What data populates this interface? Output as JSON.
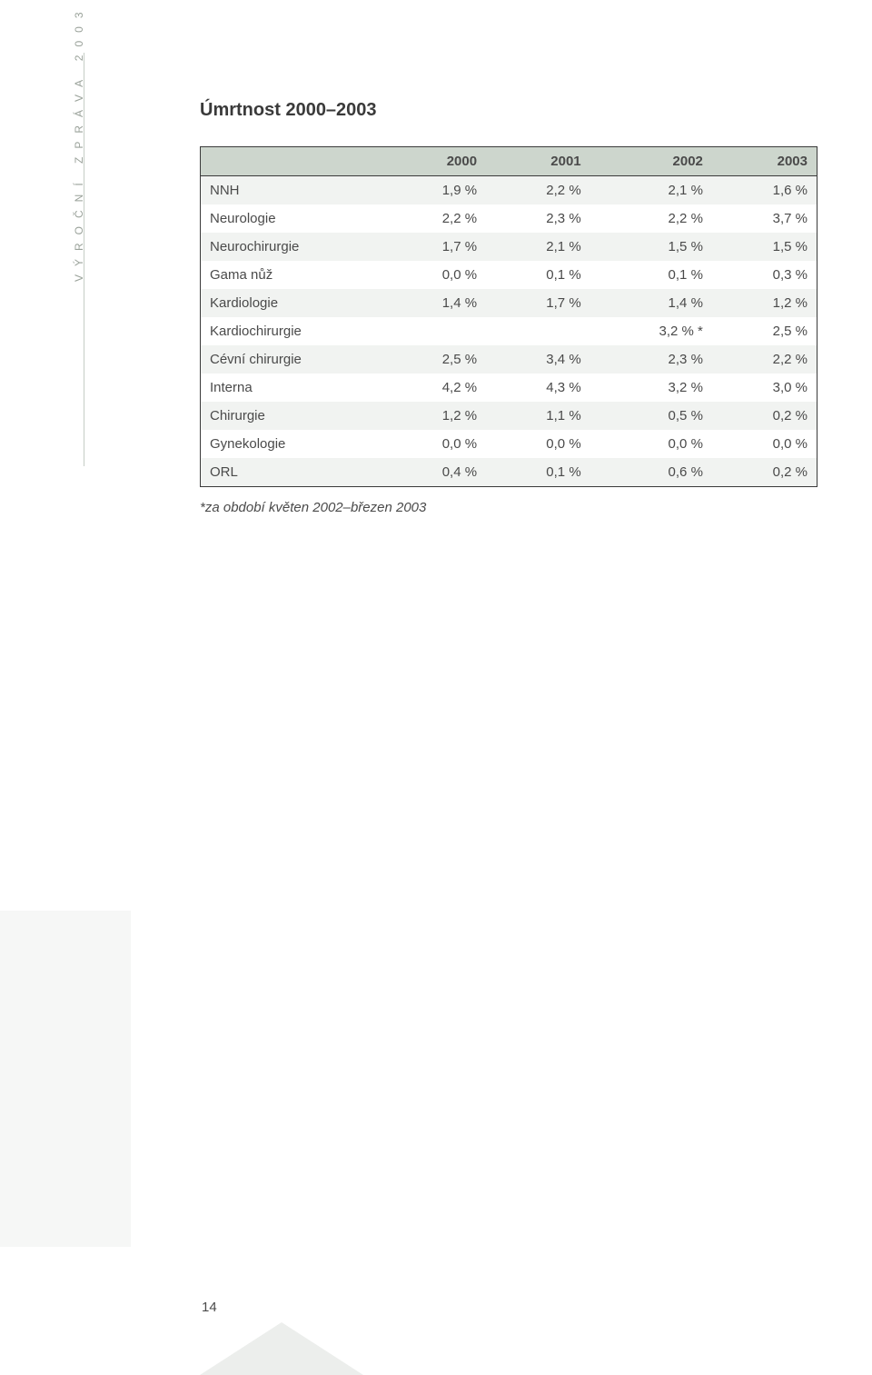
{
  "sidebar": {
    "text": "VÝROČNÍ ZPRÁVA 2003"
  },
  "title": "Úmrtnost 2000–2003",
  "table": {
    "columns": [
      "",
      "2000",
      "2001",
      "2002",
      "2003"
    ],
    "rows": [
      [
        "NNH",
        "1,9 %",
        "2,2 %",
        "2,1 %",
        "1,6 %"
      ],
      [
        "Neurologie",
        "2,2 %",
        "2,3 %",
        "2,2 %",
        "3,7 %"
      ],
      [
        "Neurochirurgie",
        "1,7 %",
        "2,1 %",
        "1,5 %",
        "1,5 %"
      ],
      [
        "Gama nůž",
        "0,0 %",
        "0,1 %",
        "0,1 %",
        "0,3 %"
      ],
      [
        "Kardiologie",
        "1,4 %",
        "1,7 %",
        "1,4 %",
        "1,2 %"
      ],
      [
        "Kardiochirurgie",
        "",
        "",
        "3,2 % *",
        "2,5 %"
      ],
      [
        "Cévní chirurgie",
        "2,5 %",
        "3,4 %",
        "2,3 %",
        "2,2 %"
      ],
      [
        "Interna",
        "4,2 %",
        "4,3 %",
        "3,2 %",
        "3,0 %"
      ],
      [
        "Chirurgie",
        "1,2 %",
        "1,1 %",
        "0,5 %",
        "0,2 %"
      ],
      [
        "Gynekologie",
        "0,0 %",
        "0,0 %",
        "0,0 %",
        "0,0 %"
      ],
      [
        "ORL",
        "0,4 %",
        "0,1 %",
        "0,6 %",
        "0,2 %"
      ]
    ],
    "header_bg": "#cdd6cd",
    "row_odd_bg": "#f1f3f1",
    "row_even_bg": "#ffffff",
    "border_color": "#3a3a3a"
  },
  "footnote": "*za období květen 2002–březen 2003",
  "page_number": "14"
}
